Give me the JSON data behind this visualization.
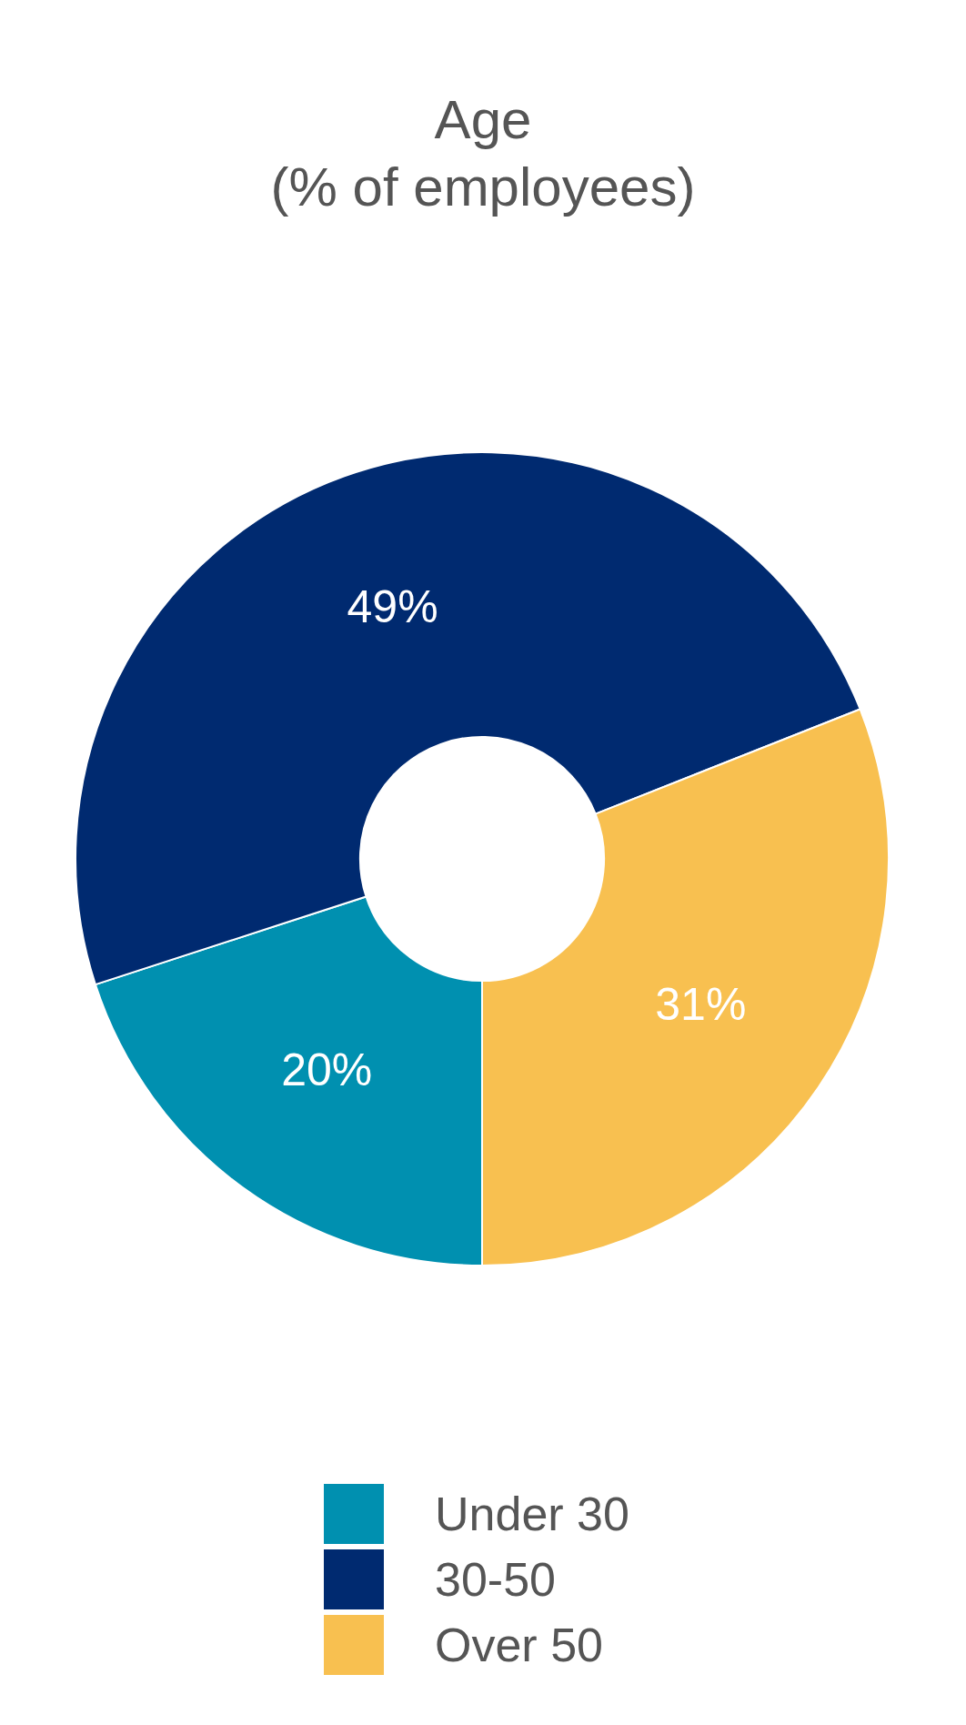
{
  "chart_data": {
    "type": "donut",
    "title": "Age\n(% of employees)",
    "categories": [
      "Under 30",
      "30-50",
      "Over 50"
    ],
    "values": [
      20,
      49,
      31
    ],
    "colors": [
      "#0090b0",
      "#002a70",
      "#f8c050"
    ],
    "value_labels": [
      "20%",
      "49%",
      "31%"
    ],
    "legend": "bottom"
  }
}
